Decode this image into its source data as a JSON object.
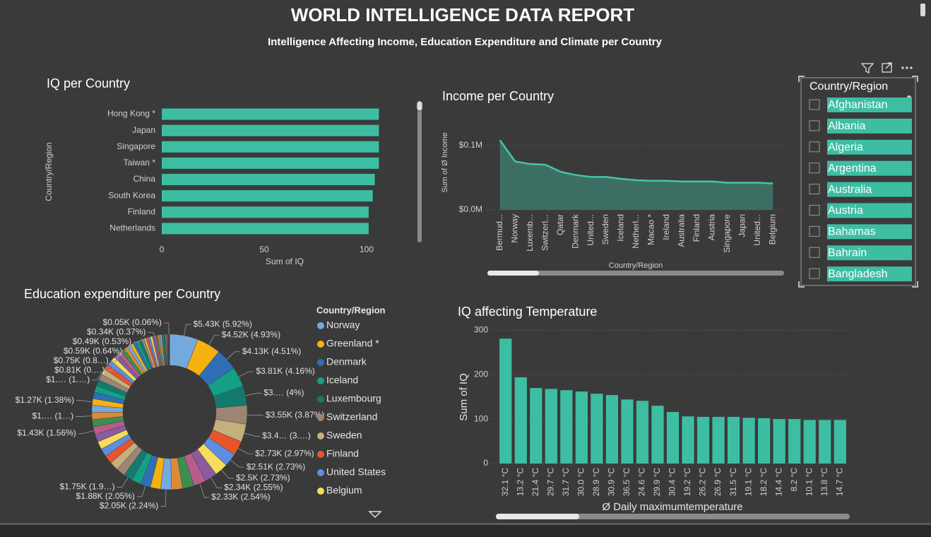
{
  "header": {
    "title": "WORLD INTELLIGENCE DATA REPORT",
    "subtitle": "Intelligence Affecting Income, Education Expenditure and Climate per Country"
  },
  "chart_data": [
    {
      "type": "bar",
      "orientation": "horizontal",
      "title": "IQ per Country",
      "x_label": "Sum of IQ",
      "y_label": "Country/Region",
      "categories": [
        "Hong Kong *",
        "Japan",
        "Singapore",
        "Taiwan *",
        "China",
        "South Korea",
        "Finland",
        "Netherlands"
      ],
      "values": [
        106,
        106,
        106,
        106,
        104,
        103,
        101,
        101
      ],
      "color": "#3dbea3",
      "xlim": [
        0,
        110
      ],
      "xticks": [
        0,
        50,
        100
      ],
      "grid": false
    },
    {
      "type": "area",
      "title": "Income per Country",
      "x_label": "Country/Region",
      "y_label": "Sum of Ø Income",
      "categories": [
        "Bermud...",
        "Norway",
        "Luxemb...",
        "Switzerl...",
        "Qatar",
        "Denmark",
        "United...",
        "Sweden",
        "Iceland",
        "Netherl...",
        "Macao *",
        "Ireland",
        "Australia",
        "Finland",
        "Austria",
        "Singapore",
        "Japan",
        "United...",
        "Belgium"
      ],
      "values": [
        108000,
        75000,
        71000,
        70000,
        59000,
        54000,
        51000,
        51000,
        48000,
        46000,
        45000,
        45000,
        44000,
        44000,
        44000,
        42000,
        42000,
        42000,
        41000
      ],
      "color": "#45c5a8",
      "fill_color": "#3d6e64",
      "ylim": [
        0,
        115000
      ],
      "yticks": [
        {
          "value": 0,
          "label": "$0.0M"
        },
        {
          "value": 100000,
          "label": "$0.1M"
        }
      ],
      "grid": true
    },
    {
      "type": "pie",
      "donut": true,
      "title": "Education expenditure per Country",
      "legend_title": "Country/Region",
      "categories": [
        "Norway",
        "Greenland *",
        "Denmark",
        "Iceland",
        "Luxembourg",
        "Switzerland",
        "Sweden",
        "Finland",
        "United States",
        "Belgium",
        null,
        null,
        null,
        null,
        null,
        null,
        null,
        null,
        null,
        null,
        null,
        null,
        null,
        null,
        null,
        null,
        null,
        null,
        null,
        null,
        null,
        null,
        null,
        null,
        null,
        null,
        null,
        null,
        null,
        null,
        null,
        null,
        null,
        null,
        null,
        null,
        null,
        null,
        null,
        null,
        null,
        null,
        null,
        null,
        null,
        null,
        null,
        null,
        null,
        null,
        null,
        null,
        null,
        null,
        null,
        null,
        null,
        null,
        null,
        null,
        null,
        null,
        null
      ],
      "values": [
        5430,
        4520,
        4130,
        3810,
        3670,
        3550,
        3400,
        2730,
        2510,
        2500,
        2340,
        2330,
        2200,
        2100,
        2050,
        1950,
        1880,
        1800,
        1750,
        1700,
        1650,
        1600,
        1550,
        1500,
        1480,
        1430,
        1400,
        1350,
        1300,
        1270,
        1250,
        1230,
        1200,
        1150,
        1100,
        1050,
        950,
        900,
        850,
        810,
        750,
        700,
        650,
        620,
        590,
        560,
        530,
        490,
        450,
        420,
        400,
        380,
        360,
        340,
        300,
        280,
        260,
        240,
        220,
        200,
        180,
        160,
        140,
        120,
        100,
        80,
        70,
        60,
        50,
        40,
        30,
        20,
        10
      ],
      "value_labels": [
        "$5.43K (5.92%)",
        "$4.52K (4.93%)",
        "$4.13K (4.51%)",
        "$3.81K (4.16%)",
        "$3.… (4%)",
        "$3.55K (3.87%)",
        "$3.4… (3.…)",
        "$2.73K (2.97%)",
        "$2.51K (2.73%)",
        "$2.5K (2.73%)",
        "$2.34K (2.55%)",
        "$2.33K (2.54%)",
        null,
        null,
        "$2.05K (2.24%)",
        null,
        "$1.88K (2.05%)",
        null,
        "$1.75K (1.9…)",
        null,
        null,
        null,
        null,
        null,
        null,
        "$1.43K (1.56%)",
        null,
        "$1.… (1…)",
        null,
        "$1.27K (1.38%)",
        null,
        null,
        null,
        null,
        null,
        "$1.… (1.…)",
        null,
        null,
        null,
        "$0.81K (0.…)",
        "$0.75K (0.8…)",
        null,
        null,
        null,
        "$0.59K (0.64%)",
        null,
        null,
        "$0.49K (0.53%)",
        null,
        null,
        null,
        null,
        null,
        "$0.34K (0.37%)",
        null,
        null,
        null,
        null,
        null,
        null,
        null,
        null,
        null,
        null,
        null,
        null,
        null,
        null,
        "$0.05K (0.06%)",
        null,
        null,
        null,
        null
      ],
      "palette": [
        "#74a9de",
        "#f5b20f",
        "#2f6fb8",
        "#14a085",
        "#157a6e",
        "#9c8572",
        "#c4b07b",
        "#e8542c",
        "#5b8ee0",
        "#f6dc5a",
        "#8c5a9e",
        "#b85c8a",
        "#3c8f50",
        "#d98a3a"
      ]
    },
    {
      "type": "bar",
      "orientation": "vertical",
      "title": "IQ affecting Temperature",
      "x_label": "Ø Daily maximumtemperature",
      "y_label": "Sum of IQ",
      "categories": [
        "32.1 °C",
        "13.2 °C",
        "21.4 °C",
        "29.7 °C",
        "31.7 °C",
        "30.0 °C",
        "28.9 °C",
        "30.9 °C",
        "36.5 °C",
        "24.6 °C",
        "29.9 °C",
        "30.4 °C",
        "19.2 °C",
        "26.2 °C",
        "26.9 °C",
        "31.5 °C",
        "19.1 °C",
        "18.2 °C",
        "14.4 °C",
        "8.2 °C",
        "10.1 °C",
        "13.8 °C",
        "14.7 °C"
      ],
      "values": [
        281,
        194,
        170,
        168,
        165,
        162,
        157,
        154,
        144,
        141,
        130,
        116,
        106,
        105,
        105,
        105,
        103,
        102,
        100,
        100,
        98,
        98,
        98
      ],
      "color": "#3dbea3",
      "ylim": [
        0,
        310
      ],
      "yticks": [
        0,
        100,
        200,
        300
      ],
      "grid": true
    }
  ],
  "slicer": {
    "title": "Country/Region",
    "items": [
      "Afghanistan",
      "Albania",
      "Algeria",
      "Argentina",
      "Australia",
      "Austria",
      "Bahamas",
      "Bahrain",
      "Bangladesh"
    ]
  }
}
